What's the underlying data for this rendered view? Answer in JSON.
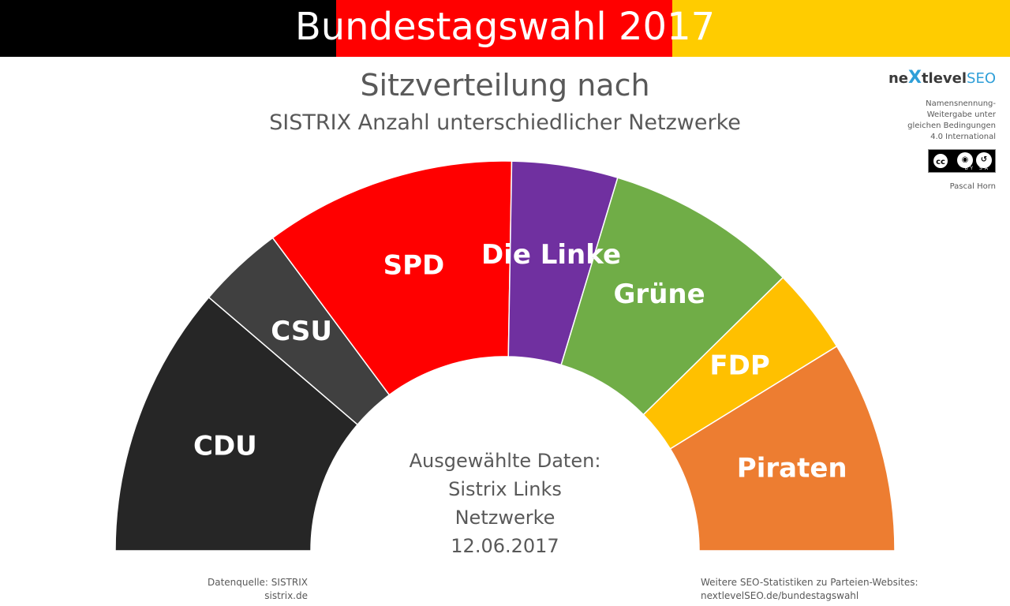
{
  "header": {
    "title": "Bundestagswahl 2017",
    "flag_colors": [
      "#000000",
      "#ff0000",
      "#ffcc00"
    ]
  },
  "subtitle_line1": "Sitzverteilung nach",
  "subtitle_line2": "SISTRIX Anzahl unterschiedlicher Netzwerke",
  "credits": {
    "logo_parts": [
      "ne",
      "X",
      "tlevel",
      "SEO"
    ],
    "license_lines": [
      "Namensnennung-",
      "Weitergabe unter",
      "gleichen Bedingungen",
      "4.0 International"
    ],
    "cc_badge_labels": "BY SA",
    "author": "Pascal Horn"
  },
  "chart_data": {
    "type": "pie",
    "variant": "semicircle-parliament",
    "categories": [
      "CDU",
      "CSU",
      "SPD",
      "Die Linke",
      "Grüne",
      "FDP",
      "Piraten"
    ],
    "values": [
      20.5,
      6.5,
      19.0,
      8.0,
      14.5,
      6.5,
      16.0
    ],
    "colors": [
      "#262626",
      "#404040",
      "#ff0000",
      "#7030a0",
      "#70ad47",
      "#ffc000",
      "#ed7d31"
    ],
    "center_text": [
      "Ausgewählte Daten:",
      "Sistrix Links",
      "Netzwerke",
      "12.06.2017"
    ]
  },
  "footer": {
    "left": [
      "Datenquelle: SISTRIX",
      "sistrix.de"
    ],
    "right": [
      "Weitere SEO-Statistiken zu Parteien-Websites:",
      "nextlevelSEO.de/bundestagswahl"
    ]
  }
}
